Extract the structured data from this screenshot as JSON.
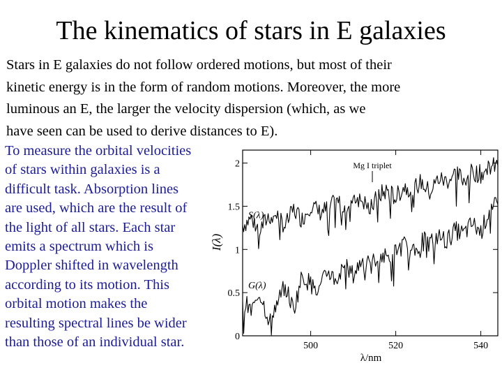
{
  "title": "The kinematics of stars in E galaxies",
  "intro_lines": [
    "Stars in E galaxies do not follow ordered motions, but most of their",
    "kinetic energy is in the form of random motions. Moreover, the more",
    "luminous an E, the larger the velocity dispersion (which, as we",
    "have seen can be used to derive distances to E)."
  ],
  "side_lines": [
    "To measure the orbital velocities",
    "of stars within galaxies is a",
    "difficult task. Absorption lines",
    "are used, which are the result of",
    "the light of all stars. Each star",
    "emits a spectrum which is",
    "Doppler shifted in wavelength",
    "according to its motion. This",
    "orbital motion makes the",
    "resulting spectral lines be wider",
    "than those of an individual star."
  ],
  "colors": {
    "side_text": "#1b1b96",
    "plot_ink": "#000000",
    "background": "#ffffff"
  },
  "chart_data": {
    "type": "line",
    "xlabel": "λ/nm",
    "ylabel": "I(λ)",
    "xlim": [
      484,
      544
    ],
    "ylim": [
      0,
      2.15
    ],
    "x_ticks": [
      "500",
      "520",
      "540"
    ],
    "x_tick_values": [
      500,
      520,
      540
    ],
    "y_ticks": [
      "0",
      "0.5",
      "1",
      "1.5",
      "2"
    ],
    "y_tick_values": [
      0,
      0.5,
      1,
      1.5,
      2
    ],
    "annotation": "Mg I triplet",
    "annotation_x": 514.5,
    "grid": false,
    "series": [
      {
        "name": "S(λ)",
        "x": [
          484,
          486,
          488,
          490,
          492,
          494,
          496,
          498,
          500,
          502,
          504,
          506,
          508,
          510,
          512,
          514,
          516,
          518,
          520,
          522,
          524,
          526,
          528,
          530,
          532,
          534,
          536,
          538,
          540,
          542,
          544
        ],
        "y": [
          1.28,
          1.36,
          1.22,
          1.38,
          1.41,
          1.27,
          1.46,
          1.35,
          1.52,
          1.43,
          1.47,
          1.55,
          1.5,
          1.62,
          1.58,
          1.46,
          1.63,
          1.68,
          1.6,
          1.73,
          1.7,
          1.78,
          1.66,
          1.82,
          1.79,
          1.88,
          1.81,
          1.9,
          1.87,
          1.95,
          1.97
        ]
      },
      {
        "name": "G(λ)",
        "x": [
          484,
          486,
          488,
          490,
          492,
          494,
          496,
          498,
          500,
          502,
          504,
          506,
          508,
          510,
          512,
          514,
          516,
          518,
          520,
          522,
          524,
          526,
          528,
          530,
          532,
          534,
          536,
          538,
          540,
          542,
          544
        ],
        "y": [
          0.42,
          0.28,
          0.5,
          0.22,
          0.36,
          0.58,
          0.3,
          0.7,
          0.6,
          0.52,
          0.75,
          0.65,
          0.82,
          0.7,
          0.88,
          0.8,
          0.95,
          0.9,
          0.99,
          1.05,
          0.95,
          1.12,
          1.08,
          1.15,
          1.1,
          1.22,
          1.18,
          1.3,
          1.2,
          1.45,
          1.52
        ]
      }
    ]
  }
}
